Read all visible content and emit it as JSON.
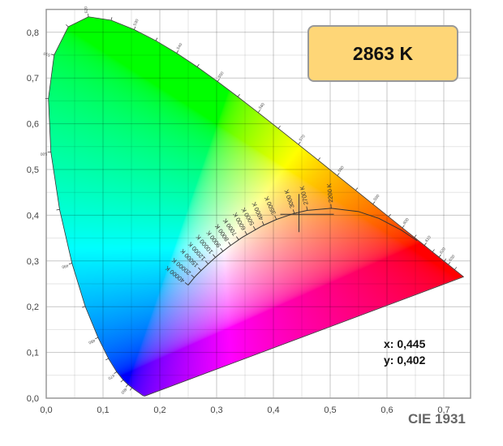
{
  "cct_readout": "2863 K",
  "coord_x": "x: 0,445",
  "coord_y": "y: 0,402",
  "diagram_label": "CIE 1931",
  "chart_data": {
    "type": "scatter",
    "title": "",
    "xlabel": "",
    "ylabel": "",
    "xlim": [
      0,
      0.75
    ],
    "ylim": [
      0,
      0.85
    ],
    "grid": true,
    "x_ticks": [
      {
        "v": 0,
        "label": "0,0"
      },
      {
        "v": 0.1,
        "label": "0,1"
      },
      {
        "v": 0.2,
        "label": "0,2"
      },
      {
        "v": 0.3,
        "label": "0,3"
      },
      {
        "v": 0.4,
        "label": "0,4"
      },
      {
        "v": 0.5,
        "label": "0,5"
      },
      {
        "v": 0.6,
        "label": "0,6"
      },
      {
        "v": 0.7,
        "label": "0,7"
      }
    ],
    "y_ticks": [
      {
        "v": 0,
        "label": "0,0"
      },
      {
        "v": 0.1,
        "label": "0,1"
      },
      {
        "v": 0.2,
        "label": "0,2"
      },
      {
        "v": 0.3,
        "label": "0,3"
      },
      {
        "v": 0.4,
        "label": "0,4"
      },
      {
        "v": 0.5,
        "label": "0,5"
      },
      {
        "v": 0.6,
        "label": "0,6"
      },
      {
        "v": 0.7,
        "label": "0,7"
      },
      {
        "v": 0.8,
        "label": "0,8"
      }
    ],
    "spectral_locus": [
      {
        "nm": 380,
        "x": 0.1741,
        "y": 0.005
      },
      {
        "nm": 400,
        "x": 0.1733,
        "y": 0.0048
      },
      {
        "nm": 420,
        "x": 0.1714,
        "y": 0.0051
      },
      {
        "nm": 430,
        "x": 0.1689,
        "y": 0.0069
      },
      {
        "nm": 440,
        "x": 0.1644,
        "y": 0.0109
      },
      {
        "nm": 450,
        "x": 0.1566,
        "y": 0.0177
      },
      {
        "nm": 455,
        "x": 0.151,
        "y": 0.0227
      },
      {
        "nm": 460,
        "x": 0.144,
        "y": 0.0297
      },
      {
        "nm": 465,
        "x": 0.1355,
        "y": 0.0399
      },
      {
        "nm": 470,
        "x": 0.1241,
        "y": 0.0578
      },
      {
        "nm": 475,
        "x": 0.1096,
        "y": 0.0868
      },
      {
        "nm": 480,
        "x": 0.0913,
        "y": 0.1327
      },
      {
        "nm": 485,
        "x": 0.0687,
        "y": 0.2007
      },
      {
        "nm": 490,
        "x": 0.0454,
        "y": 0.295
      },
      {
        "nm": 495,
        "x": 0.0235,
        "y": 0.4127
      },
      {
        "nm": 500,
        "x": 0.0082,
        "y": 0.5384
      },
      {
        "nm": 505,
        "x": 0.0039,
        "y": 0.6548
      },
      {
        "nm": 510,
        "x": 0.0139,
        "y": 0.7502
      },
      {
        "nm": 515,
        "x": 0.0389,
        "y": 0.812
      },
      {
        "nm": 520,
        "x": 0.0743,
        "y": 0.8338
      },
      {
        "nm": 525,
        "x": 0.1142,
        "y": 0.8262
      },
      {
        "nm": 530,
        "x": 0.1547,
        "y": 0.8059
      },
      {
        "nm": 535,
        "x": 0.1929,
        "y": 0.7816
      },
      {
        "nm": 540,
        "x": 0.2296,
        "y": 0.7543
      },
      {
        "nm": 545,
        "x": 0.2658,
        "y": 0.7243
      },
      {
        "nm": 550,
        "x": 0.3016,
        "y": 0.6923
      },
      {
        "nm": 555,
        "x": 0.3373,
        "y": 0.6589
      },
      {
        "nm": 560,
        "x": 0.3731,
        "y": 0.6245
      },
      {
        "nm": 565,
        "x": 0.4087,
        "y": 0.5896
      },
      {
        "nm": 570,
        "x": 0.4441,
        "y": 0.5547
      },
      {
        "nm": 575,
        "x": 0.4788,
        "y": 0.5202
      },
      {
        "nm": 580,
        "x": 0.5125,
        "y": 0.4866
      },
      {
        "nm": 585,
        "x": 0.5448,
        "y": 0.4544
      },
      {
        "nm": 590,
        "x": 0.5752,
        "y": 0.4242
      },
      {
        "nm": 595,
        "x": 0.6029,
        "y": 0.3965
      },
      {
        "nm": 600,
        "x": 0.627,
        "y": 0.3725
      },
      {
        "nm": 605,
        "x": 0.6482,
        "y": 0.3514
      },
      {
        "nm": 610,
        "x": 0.6658,
        "y": 0.334
      },
      {
        "nm": 615,
        "x": 0.6801,
        "y": 0.3197
      },
      {
        "nm": 620,
        "x": 0.6915,
        "y": 0.3083
      },
      {
        "nm": 625,
        "x": 0.7006,
        "y": 0.2993
      },
      {
        "nm": 630,
        "x": 0.7079,
        "y": 0.292
      },
      {
        "nm": 640,
        "x": 0.719,
        "y": 0.2809
      },
      {
        "nm": 650,
        "x": 0.726,
        "y": 0.274
      },
      {
        "nm": 700,
        "x": 0.7347,
        "y": 0.2653
      }
    ],
    "wavelength_labels": [
      460,
      470,
      480,
      490,
      500,
      510,
      520,
      530,
      540,
      550,
      560,
      570,
      580,
      590,
      600,
      610,
      620,
      630
    ],
    "planckian_locus": [
      {
        "cct": 40000,
        "label": "40000 K",
        "x": 0.2499,
        "y": 0.2472
      },
      {
        "cct": 20000,
        "label": "20000 K",
        "x": 0.2568,
        "y": 0.2578
      },
      {
        "cct": 15000,
        "label": "15000 K",
        "x": 0.2637,
        "y": 0.268
      },
      {
        "cct": 12000,
        "label": "12000 K",
        "x": 0.272,
        "y": 0.2781
      },
      {
        "cct": 10000,
        "label": "10000 K",
        "x": 0.2807,
        "y": 0.2884
      },
      {
        "cct": 9000,
        "label": "9000 K",
        "x": 0.2867,
        "y": 0.2952
      },
      {
        "cct": 8000,
        "label": "8000 K",
        "x": 0.2951,
        "y": 0.3048
      },
      {
        "cct": 7000,
        "label": "7000 K",
        "x": 0.3064,
        "y": 0.3166
      },
      {
        "cct": 6000,
        "label": "6000 K",
        "x": 0.3222,
        "y": 0.3318
      },
      {
        "cct": 5000,
        "label": "5000 K",
        "x": 0.3451,
        "y": 0.3516
      },
      {
        "cct": 4000,
        "label": "4000 K",
        "x": 0.3805,
        "y": 0.3768
      },
      {
        "cct": 3500,
        "label": "3500 K",
        "x": 0.4053,
        "y": 0.3907
      },
      {
        "cct": 3000,
        "label": "3000 K",
        "x": 0.4369,
        "y": 0.4041
      },
      {
        "cct": 2700,
        "label": "2700 K",
        "x": 0.4599,
        "y": 0.4106
      },
      {
        "cct": 2200,
        "label": "2200 K",
        "x": 0.5019,
        "y": 0.4152
      },
      {
        "cct": 1800,
        "label": "",
        "x": 0.5496,
        "y": 0.4081
      },
      {
        "cct": 1500,
        "label": "",
        "x": 0.5857,
        "y": 0.3931
      },
      {
        "cct": 1200,
        "label": "",
        "x": 0.625,
        "y": 0.3675
      },
      {
        "cct": 1000,
        "label": "",
        "x": 0.6528,
        "y": 0.3444
      }
    ],
    "marker": {
      "x": 0.445,
      "y": 0.402,
      "cct": 2863
    }
  }
}
